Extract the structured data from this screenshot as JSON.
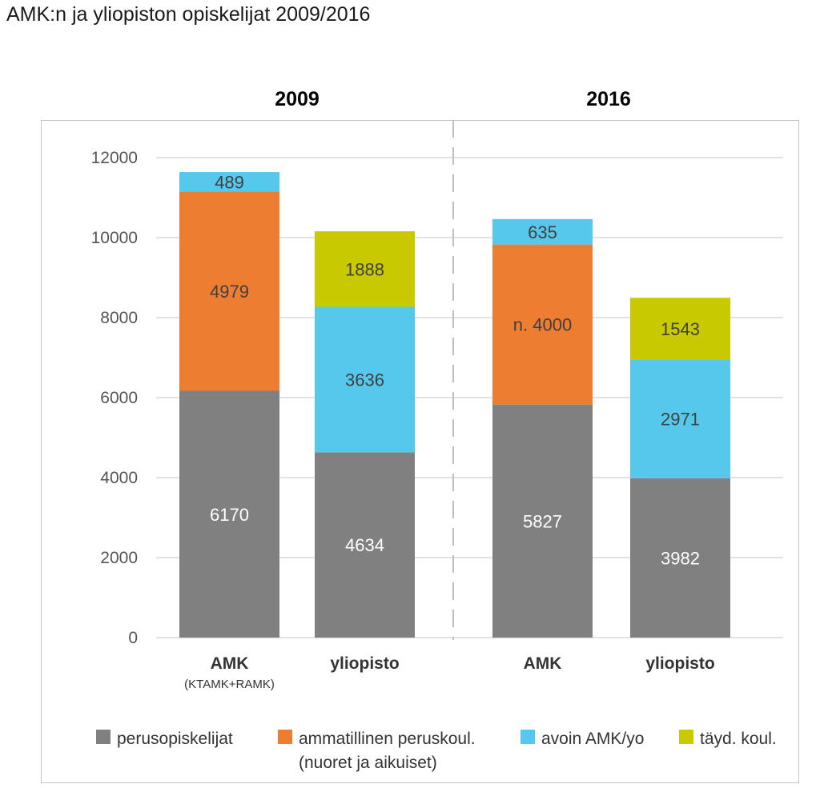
{
  "title": "AMK:n ja yliopiston opiskelijat 2009/2016",
  "chart_data": {
    "type": "bar",
    "stacked": true,
    "title": "AMK:n ja yliopiston opiskelijat 2009/2016",
    "ylim": [
      0,
      12000
    ],
    "yticks": [
      0,
      2000,
      4000,
      6000,
      8000,
      10000,
      12000
    ],
    "grid": true,
    "legend_position": "bottom",
    "groups": [
      "2009",
      "2016"
    ],
    "categories": [
      {
        "group": "2009",
        "label": "AMK",
        "sublabel": "(KTAMK+RAMK)"
      },
      {
        "group": "2009",
        "label": "yliopisto",
        "sublabel": ""
      },
      {
        "group": "2016",
        "label": "AMK",
        "sublabel": ""
      },
      {
        "group": "2016",
        "label": "yliopisto",
        "sublabel": ""
      }
    ],
    "series": [
      {
        "name": "perusopiskelijat",
        "color": "#808080",
        "label_color": "#ffffff",
        "values": [
          6170,
          4634,
          5827,
          3982
        ],
        "labels": [
          "6170",
          "4634",
          "5827",
          "3982"
        ]
      },
      {
        "name": "ammatillinen peruskoul.",
        "name_line2": "(nuoret ja aikuiset)",
        "color": "#ED7D31",
        "label_color": "#404040",
        "values": [
          4979,
          0,
          4000,
          0
        ],
        "labels": [
          "4979",
          "",
          "n. 4000",
          ""
        ]
      },
      {
        "name": "avoin AMK/yo",
        "color": "#56C8EC",
        "label_color": "#404040",
        "values": [
          489,
          3636,
          635,
          2971
        ],
        "labels": [
          "489",
          "3636",
          "635",
          "2971"
        ]
      },
      {
        "name": "täyd. koul.",
        "color": "#C9C900",
        "label_color": "#404040",
        "values": [
          0,
          1888,
          0,
          1543
        ],
        "labels": [
          "",
          "1888",
          "",
          "1543"
        ]
      }
    ]
  }
}
